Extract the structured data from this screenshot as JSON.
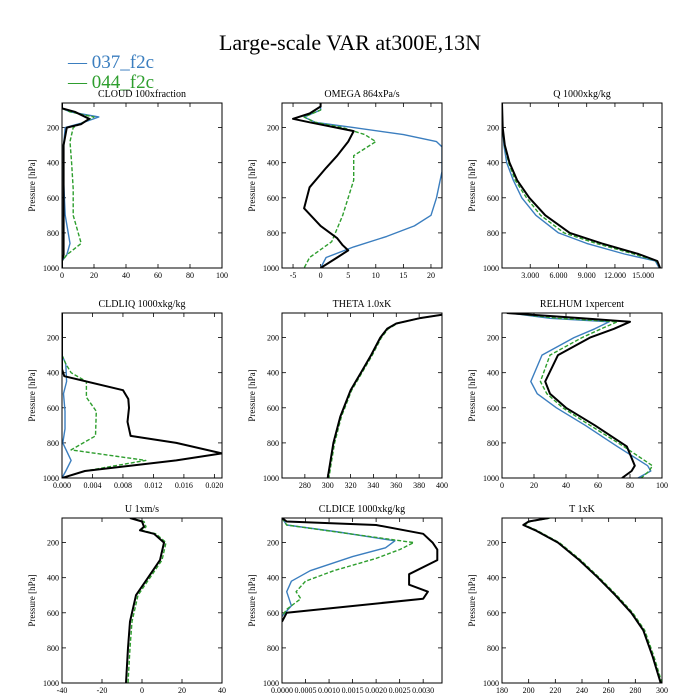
{
  "figure": {
    "title": "Large-scale VAR at300E,13N",
    "legend": [
      {
        "label": "037_f2c",
        "color": "#3b7ebf"
      },
      {
        "label": "044_f2c",
        "color": "#2e9e2e"
      }
    ],
    "colors": {
      "control": "#000000"
    }
  },
  "chart_data": [
    {
      "type": "line",
      "title": "CLOUD  100xfraction",
      "ylabel": "Pressure [hPa]",
      "xlim": [
        0,
        100
      ],
      "xticks": [
        0,
        20,
        40,
        60,
        80,
        100
      ],
      "xtick_labels": [
        "0",
        "20",
        "40",
        "60",
        "80",
        "100"
      ],
      "ylim": [
        1000,
        60
      ],
      "yticks": [
        200,
        400,
        600,
        800,
        1000
      ],
      "series": [
        {
          "name": "037_f2c",
          "x": [
            0,
            0,
            5,
            23,
            12,
            2,
            1,
            1,
            2,
            5,
            3,
            0,
            0
          ],
          "y": [
            60,
            90,
            110,
            140,
            175,
            200,
            300,
            500,
            700,
            860,
            925,
            960,
            1000
          ]
        },
        {
          "name": "044_f2c",
          "x": [
            0,
            0,
            5,
            20,
            12,
            7,
            5,
            6,
            7,
            7,
            12,
            3,
            0,
            0
          ],
          "y": [
            60,
            90,
            110,
            140,
            175,
            200,
            280,
            400,
            550,
            700,
            860,
            925,
            960,
            1000
          ]
        },
        {
          "name": "control",
          "x": [
            0,
            0,
            8,
            17,
            12,
            3,
            1,
            1,
            1,
            1,
            1,
            0,
            0
          ],
          "y": [
            60,
            90,
            110,
            150,
            180,
            200,
            300,
            500,
            700,
            860,
            925,
            960,
            1000
          ]
        }
      ]
    },
    {
      "type": "line",
      "title": "OMEGA  864xPa/s",
      "ylabel": "Pressure [hPa]",
      "xlim": [
        -7,
        22
      ],
      "xticks": [
        -5,
        0,
        5,
        10,
        15,
        20
      ],
      "xtick_labels": [
        "-5",
        "0",
        "5",
        "10",
        "15",
        "20"
      ],
      "ylim": [
        1000,
        60
      ],
      "yticks": [
        200,
        400,
        600,
        800,
        1000
      ],
      "series": [
        {
          "name": "037_f2c",
          "x": [
            0,
            0,
            -3,
            -1,
            6,
            15,
            21,
            22,
            22,
            22,
            21,
            20,
            17,
            12,
            6,
            1,
            0
          ],
          "y": [
            60,
            100,
            140,
            170,
            200,
            240,
            280,
            310,
            350,
            450,
            600,
            700,
            760,
            820,
            880,
            940,
            1000
          ]
        },
        {
          "name": "044_f2c",
          "x": [
            0,
            0,
            -3,
            -1,
            4,
            8,
            10,
            8,
            6,
            6,
            4,
            2,
            -2,
            -3
          ],
          "y": [
            60,
            100,
            140,
            170,
            200,
            240,
            280,
            320,
            360,
            500,
            700,
            850,
            940,
            1000
          ]
        },
        {
          "name": "control",
          "x": [
            0,
            0,
            -2,
            -5,
            -2,
            6,
            5,
            4,
            3,
            1,
            -2,
            -3,
            0,
            3,
            4,
            5,
            3,
            0
          ],
          "y": [
            60,
            80,
            120,
            150,
            170,
            220,
            280,
            320,
            360,
            430,
            540,
            660,
            760,
            830,
            870,
            900,
            940,
            1000
          ]
        }
      ]
    },
    {
      "type": "line",
      "title": "Q  1000xkg/kg",
      "ylabel": "Pressure [hPa]",
      "xlim": [
        0,
        17000
      ],
      "xticks": [
        3000,
        6000,
        9000,
        12000,
        15000
      ],
      "xtick_labels": [
        "3.000",
        "6.000",
        "9.000",
        "12.000",
        "15.000"
      ],
      "ylim": [
        1000,
        60
      ],
      "yticks": [
        200,
        400,
        600,
        800,
        1000
      ],
      "series": [
        {
          "name": "037_f2c",
          "x": [
            5,
            60,
            200,
            500,
            1200,
            2100,
            3600,
            6000,
            9000,
            13000,
            16300,
            16700
          ],
          "y": [
            60,
            200,
            300,
            400,
            500,
            600,
            700,
            800,
            860,
            920,
            960,
            1000
          ]
        },
        {
          "name": "044_f2c",
          "x": [
            5,
            60,
            250,
            700,
            1400,
            2600,
            4100,
            6600,
            10000,
            14000,
            16400,
            16800
          ],
          "y": [
            60,
            200,
            300,
            400,
            500,
            600,
            700,
            800,
            860,
            920,
            960,
            1000
          ]
        },
        {
          "name": "control",
          "x": [
            5,
            70,
            300,
            800,
            1600,
            2900,
            4600,
            7200,
            10600,
            14500,
            16500,
            16800
          ],
          "y": [
            60,
            200,
            300,
            400,
            500,
            600,
            700,
            800,
            860,
            920,
            960,
            1000
          ]
        }
      ]
    },
    {
      "type": "line",
      "title": "CLDLIQ  1000xkg/kg",
      "ylabel": "Pressure [hPa]",
      "xlim": [
        0,
        0.021
      ],
      "xticks": [
        0,
        0.004,
        0.008,
        0.012,
        0.016,
        0.02
      ],
      "xtick_labels": [
        "0.000",
        "0.004",
        "0.008",
        "0.012",
        "0.016",
        "0.020"
      ],
      "ylim": [
        1000,
        60
      ],
      "yticks": [
        200,
        400,
        600,
        800,
        1000
      ],
      "series": [
        {
          "name": "037_f2c",
          "x": [
            0,
            0,
            0.0005,
            0.0006,
            0.0002,
            0.0004,
            0.0004,
            0.0001,
            0.0012,
            0.0005,
            0
          ],
          "y": [
            60,
            300,
            350,
            450,
            520,
            620,
            720,
            800,
            900,
            960,
            1000
          ]
        },
        {
          "name": "044_f2c",
          "x": [
            0,
            0,
            0.0005,
            0.0012,
            0.0032,
            0.0032,
            0.0045,
            0.0044,
            0.0012,
            0.011,
            0.003,
            0
          ],
          "y": [
            60,
            300,
            350,
            400,
            450,
            540,
            620,
            760,
            840,
            900,
            960,
            1000
          ]
        },
        {
          "name": "control",
          "x": [
            0,
            0,
            0.0003,
            0.008,
            0.0087,
            0.0088,
            0.0086,
            0.009,
            0.015,
            0.021,
            0.015,
            0.003,
            0
          ],
          "y": [
            60,
            380,
            420,
            500,
            550,
            600,
            680,
            760,
            800,
            860,
            900,
            960,
            1000
          ]
        }
      ]
    },
    {
      "type": "line",
      "title": "THETA  1.0xK",
      "ylabel": "Pressure [hPa]",
      "xlim": [
        260,
        400
      ],
      "xticks": [
        280,
        300,
        320,
        340,
        360,
        380,
        400
      ],
      "xtick_labels": [
        "280",
        "300",
        "320",
        "340",
        "360",
        "380",
        "400"
      ],
      "ylim": [
        1000,
        60
      ],
      "yticks": [
        200,
        400,
        600,
        800,
        1000
      ],
      "series": [
        {
          "name": "037_f2c",
          "x": [
            400,
            380,
            360,
            352,
            346,
            338,
            329,
            320,
            311,
            305,
            302,
            300
          ],
          "y": [
            70,
            90,
            120,
            150,
            200,
            300,
            400,
            500,
            650,
            800,
            920,
            1000
          ]
        },
        {
          "name": "044_f2c",
          "x": [
            400,
            380,
            361,
            353,
            347,
            339,
            330,
            321,
            312,
            306,
            303,
            301
          ],
          "y": [
            70,
            90,
            120,
            150,
            200,
            300,
            400,
            500,
            650,
            800,
            920,
            1000
          ]
        },
        {
          "name": "control",
          "x": [
            400,
            380,
            360,
            352,
            346,
            338,
            329,
            320,
            311,
            305,
            302,
            300
          ],
          "y": [
            70,
            90,
            120,
            150,
            200,
            300,
            400,
            500,
            650,
            800,
            920,
            1000
          ]
        }
      ]
    },
    {
      "type": "line",
      "title": "RELHUM  1xpercent",
      "ylabel": "Pressure [hPa]",
      "xlim": [
        0,
        100
      ],
      "xticks": [
        0,
        20,
        40,
        60,
        80,
        100
      ],
      "xtick_labels": [
        "0",
        "20",
        "40",
        "60",
        "80",
        "100"
      ],
      "ylim": [
        1000,
        60
      ],
      "yticks": [
        200,
        400,
        600,
        800,
        1000
      ],
      "series": [
        {
          "name": "037_f2c",
          "x": [
            5,
            30,
            67,
            58,
            45,
            25,
            18,
            22,
            34,
            52,
            72,
            91,
            93,
            85
          ],
          "y": [
            60,
            90,
            110,
            150,
            200,
            300,
            450,
            520,
            600,
            700,
            820,
            930,
            960,
            1000
          ]
        },
        {
          "name": "044_f2c",
          "x": [
            5,
            35,
            72,
            62,
            50,
            30,
            24,
            28,
            38,
            55,
            76,
            94,
            92,
            87
          ],
          "y": [
            60,
            90,
            110,
            150,
            200,
            300,
            450,
            520,
            600,
            700,
            820,
            930,
            960,
            1000
          ]
        },
        {
          "name": "control",
          "x": [
            3,
            50,
            80,
            70,
            55,
            35,
            27,
            30,
            40,
            58,
            78,
            83,
            81,
            75
          ],
          "y": [
            60,
            90,
            110,
            150,
            200,
            300,
            450,
            520,
            600,
            700,
            820,
            930,
            960,
            1000
          ]
        }
      ]
    },
    {
      "type": "line",
      "title": "U  1xm/s",
      "ylabel": "Pressure [hPa]",
      "xlim": [
        -40,
        40
      ],
      "xticks": [
        -40,
        -20,
        0,
        20,
        40
      ],
      "xtick_labels": [
        "-40",
        "-20",
        "0",
        "20",
        "40"
      ],
      "ylim": [
        1000,
        60
      ],
      "yticks": [
        200,
        400,
        600,
        800,
        1000
      ],
      "series": [
        {
          "name": "037_f2c",
          "x": [
            -6,
            0,
            1,
            -1,
            6,
            11,
            9,
            3,
            -3,
            -6,
            -7,
            -8
          ],
          "y": [
            60,
            80,
            110,
            130,
            150,
            200,
            300,
            400,
            500,
            650,
            800,
            1000
          ]
        },
        {
          "name": "044_f2c",
          "x": [
            -6,
            1,
            2,
            0,
            7,
            12,
            10,
            4,
            -2,
            -5,
            -6,
            -7
          ],
          "y": [
            60,
            80,
            110,
            130,
            150,
            200,
            300,
            400,
            500,
            650,
            800,
            1000
          ]
        },
        {
          "name": "control",
          "x": [
            -6,
            0,
            1,
            -1,
            6,
            11,
            9,
            3,
            -3,
            -6,
            -7,
            -8
          ],
          "y": [
            60,
            80,
            110,
            130,
            150,
            200,
            300,
            400,
            500,
            650,
            800,
            1000
          ]
        }
      ]
    },
    {
      "type": "line",
      "title": "CLDICE  1000xkg/kg",
      "ylabel": "Pressure [hPa]",
      "xlim": [
        0,
        0.0034
      ],
      "xticks": [
        0,
        0.0005,
        0.001,
        0.0015,
        0.002,
        0.0025,
        0.003
      ],
      "xtick_labels": [
        "0.0000",
        "0.0005",
        "0.0010",
        "0.0015",
        "0.0020",
        "0.0025",
        "0.0030"
      ],
      "ylim": [
        1000,
        60
      ],
      "yticks": [
        200,
        400,
        600,
        800,
        1000
      ],
      "series": [
        {
          "name": "037_f2c",
          "x": [
            0,
            0.0001,
            0.0012,
            0.0024,
            0.0022,
            0.0015,
            0.0006,
            0.0002,
            0.0001,
            0.0002,
            0
          ],
          "y": [
            60,
            100,
            140,
            190,
            230,
            280,
            360,
            420,
            480,
            560,
            620
          ]
        },
        {
          "name": "044_f2c",
          "x": [
            0,
            0.0001,
            0.0009,
            0.0028,
            0.0025,
            0.002,
            0.0011,
            0.0005,
            0.0003,
            0.0004,
            0.0001,
            0
          ],
          "y": [
            60,
            100,
            130,
            200,
            240,
            290,
            360,
            420,
            480,
            520,
            580,
            620
          ]
        },
        {
          "name": "control",
          "x": [
            0,
            0.0001,
            0.002,
            0.003,
            0.0032,
            0.0033,
            0.0033,
            0.0027,
            0.0027,
            0.0031,
            0.003,
            0.0001,
            0
          ],
          "y": [
            60,
            80,
            100,
            150,
            200,
            240,
            300,
            380,
            440,
            480,
            520,
            600,
            650
          ]
        }
      ]
    },
    {
      "type": "line",
      "title": "T  1xK",
      "ylabel": "Pressure [hPa]",
      "xlim": [
        180,
        300
      ],
      "xticks": [
        180,
        200,
        220,
        240,
        260,
        280,
        300
      ],
      "xtick_labels": [
        "180",
        "200",
        "220",
        "240",
        "260",
        "280",
        "300"
      ],
      "ylim": [
        1000,
        60
      ],
      "yticks": [
        200,
        400,
        600,
        800,
        1000
      ],
      "series": [
        {
          "name": "037_f2c",
          "x": [
            215,
            200,
            196,
            205,
            222,
            238,
            252,
            265,
            277,
            286,
            293,
            299
          ],
          "y": [
            60,
            80,
            100,
            130,
            200,
            300,
            400,
            500,
            600,
            700,
            850,
            1000
          ]
        },
        {
          "name": "044_f2c",
          "x": [
            216,
            201,
            197,
            206,
            223,
            239,
            253,
            266,
            278,
            287,
            294,
            300
          ],
          "y": [
            60,
            80,
            100,
            130,
            200,
            300,
            400,
            500,
            600,
            700,
            850,
            1000
          ]
        },
        {
          "name": "control",
          "x": [
            215,
            200,
            196,
            205,
            222,
            238,
            252,
            265,
            277,
            286,
            293,
            299
          ],
          "y": [
            60,
            80,
            100,
            130,
            200,
            300,
            400,
            500,
            600,
            700,
            850,
            1000
          ]
        }
      ]
    }
  ]
}
